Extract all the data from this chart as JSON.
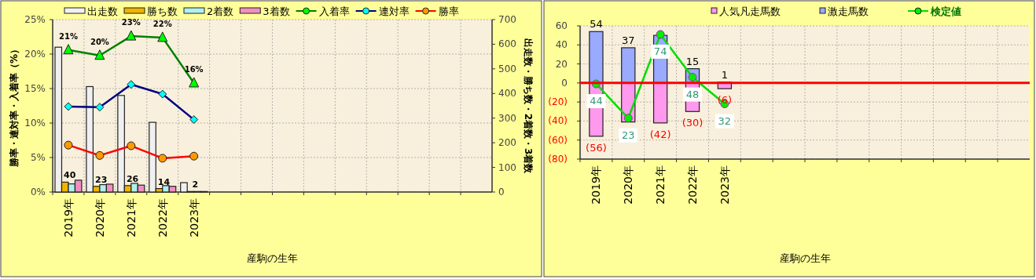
{
  "chart_data": [
    {
      "type": "bar",
      "xlabel": "産駒の生年",
      "ylabel": "勝率・連対率・入着率（%）",
      "y2label": "出走数・勝ち数・2着数・3着数",
      "categories": [
        "2019年",
        "2020年",
        "2021年",
        "2022年",
        "2023年",
        null,
        null,
        null,
        null,
        null,
        null,
        null,
        null,
        null
      ],
      "ylim": [
        0,
        25
      ],
      "yticks": [
        {
          "value": 0,
          "label": "0%"
        },
        {
          "value": 5,
          "label": "5%"
        },
        {
          "value": 10,
          "label": "10%"
        },
        {
          "value": 15,
          "label": "15%"
        },
        {
          "value": 20,
          "label": "20%"
        },
        {
          "value": 25,
          "label": "25%"
        }
      ],
      "y2lim": [
        0,
        700
      ],
      "y2ticks": [
        0,
        100,
        200,
        300,
        400,
        500,
        600,
        700
      ],
      "grid": true,
      "legend": "top",
      "series": [
        {
          "name": "出走数",
          "axis": "y2",
          "color": "#f0f0f0",
          "values": [
            588,
            428,
            392,
            283,
            38,
            null,
            null,
            null,
            null,
            null,
            null,
            null,
            null,
            null
          ]
        },
        {
          "name": "勝ち数",
          "axis": "y2",
          "color": "#f0b400",
          "values": [
            40,
            23,
            26,
            14,
            2,
            null,
            null,
            null,
            null,
            null,
            null,
            null,
            null,
            null
          ],
          "value_labels": [
            "40",
            "23",
            "26",
            "14",
            "2",
            null,
            null,
            null,
            null,
            null,
            null,
            null,
            null,
            null
          ]
        },
        {
          "name": "2着数",
          "axis": "y2",
          "color": "#b0f0f0",
          "values": [
            33,
            30,
            35,
            26,
            2,
            null,
            null,
            null,
            null,
            null,
            null,
            null,
            null,
            null
          ]
        },
        {
          "name": "3着数",
          "axis": "y2",
          "color": "#f090c0",
          "values": [
            48,
            32,
            28,
            23,
            2,
            null,
            null,
            null,
            null,
            null,
            null,
            null,
            null,
            null
          ]
        },
        {
          "name": "入着率",
          "type": "line",
          "color": "#008000",
          "marker": "triangle",
          "colors": [
            "#00ff00",
            "#00ff00",
            "#00ff00",
            "#00ff00",
            "#00ff00",
            null,
            null,
            null,
            null,
            null,
            null,
            null,
            null,
            null
          ],
          "values": [
            20.6,
            19.8,
            22.6,
            22.4,
            15.8,
            null,
            null,
            null,
            null,
            null,
            null,
            null,
            null,
            null
          ],
          "value_labels": [
            "21%",
            "20%",
            "23%",
            "22%",
            "16%",
            null,
            null,
            null,
            null,
            null,
            null,
            null,
            null,
            null
          ]
        },
        {
          "name": "連対率",
          "type": "line",
          "color": "#000080",
          "marker": "diamond",
          "colors": [
            "#00ffff",
            "#00ffff",
            "#00ffff",
            "#00ffff",
            "#00ffff",
            null,
            null,
            null,
            null,
            null,
            null,
            null,
            null,
            null
          ],
          "values": [
            12.4,
            12.3,
            15.6,
            14.2,
            10.5,
            null,
            null,
            null,
            null,
            null,
            null,
            null,
            null,
            null
          ]
        },
        {
          "name": "勝率",
          "type": "line",
          "color": "#ff0000",
          "marker": "circle",
          "colors": [
            "#ff9900",
            "#ff9900",
            "#ff9900",
            "#ff9900",
            "#ff9900",
            null,
            null,
            null,
            null,
            null,
            null,
            null,
            null,
            null
          ],
          "values": [
            6.8,
            5.3,
            6.7,
            4.9,
            5.2,
            null,
            null,
            null,
            null,
            null,
            null,
            null,
            null,
            null
          ]
        }
      ]
    },
    {
      "type": "bar",
      "xlabel": "産駒の生年",
      "stacked": true,
      "categories": [
        "2019年",
        "2020年",
        "2021年",
        "2022年",
        "2023年",
        null,
        null,
        null,
        null,
        null,
        null,
        null,
        null,
        null
      ],
      "ylim": [
        -80,
        60
      ],
      "yticks": [
        {
          "value": -80,
          "label": "(80)"
        },
        {
          "value": -60,
          "label": "(60)"
        },
        {
          "value": -40,
          "label": "(40)"
        },
        {
          "value": -20,
          "label": "(20)"
        },
        0,
        20,
        40,
        60
      ],
      "grid": true,
      "legend": "top",
      "ref_lines": [
        {
          "axis": "y",
          "value": 0,
          "color": "#ff0000"
        }
      ],
      "annotations": [
        {
          "text": "44",
          "x": "2019年",
          "y": -1
        },
        {
          "text": "23",
          "x": "2020年",
          "y": -37
        },
        {
          "text": "74",
          "x": "2021年",
          "y": 51
        },
        {
          "text": "48",
          "x": "2022年",
          "y": 6
        },
        {
          "text": "32",
          "x": "2023年",
          "y": -22
        }
      ],
      "series": [
        {
          "name": "人気凡走馬数",
          "color": "#ff99ee",
          "values": [
            -56,
            -41,
            -42,
            -30,
            -6,
            null,
            null,
            null,
            null,
            null,
            null,
            null,
            null,
            null
          ],
          "value_labels": [
            "(56)",
            null,
            "(42)",
            "(30)",
            "(6)",
            null,
            null,
            null,
            null,
            null,
            null,
            null,
            null,
            null
          ]
        },
        {
          "name": "激走馬数",
          "color": "#99aaff",
          "values": [
            54,
            37,
            50,
            15,
            1,
            null,
            null,
            null,
            null,
            null,
            null,
            null,
            null,
            null
          ],
          "value_labels": [
            "54",
            "37",
            null,
            "15",
            "1",
            null,
            null,
            null,
            null,
            null,
            null,
            null,
            null,
            null
          ]
        },
        {
          "name": "検定値",
          "type": "line",
          "color": "#00dd00",
          "marker": "circle",
          "colors": [
            "#00ee00",
            "#00ee00",
            "#00ee00",
            "#00ee00",
            "#00ee00",
            null,
            null,
            null,
            null,
            null,
            null,
            null,
            null,
            null
          ],
          "values": [
            -1,
            -37,
            51,
            6,
            -22,
            null,
            null,
            null,
            null,
            null,
            null,
            null,
            null,
            null
          ]
        }
      ]
    }
  ]
}
